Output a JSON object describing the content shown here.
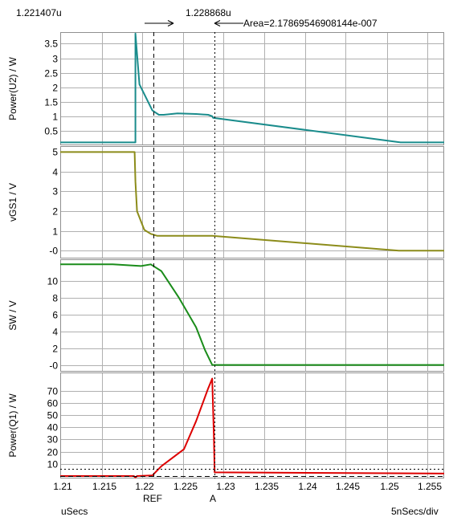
{
  "header": {
    "ref_time": "1.221407u",
    "a_time": "1.228868u",
    "area_label": "Area=2.17869546908144e-007"
  },
  "footer": {
    "x_unit": "uSecs",
    "x_div": "5nSecs/div",
    "ref_label": "REF",
    "a_label": "A"
  },
  "colors": {
    "power_u2": "#1a8c8c",
    "vgs1": "#8c8c1a",
    "sw": "#1a8c1a",
    "power_q1": "#dd0000",
    "grid": "#b0b0b0",
    "frame": "#909090"
  },
  "chart_data": [
    {
      "type": "line",
      "ylabel": "Power(U2) / W",
      "xlim": [
        1.21,
        1.2575
      ],
      "ylim": [
        0,
        3.9
      ],
      "yticks": [
        0.5,
        1,
        1.5,
        2,
        2.5,
        3,
        3.5
      ],
      "ytick_labels": [
        "0.5",
        "1",
        "1.5",
        "2",
        "2.5",
        "3",
        "3.5"
      ],
      "series": [
        {
          "x": [
            1.21,
            1.2193,
            1.2193,
            1.2198,
            1.2214,
            1.2222,
            1.2228,
            1.2245,
            1.2268,
            1.2283,
            1.2288,
            1.2289,
            1.2521,
            1.2575
          ],
          "y": [
            0.1,
            0.1,
            3.85,
            2.1,
            1.2,
            1.05,
            1.05,
            1.1,
            1.08,
            1.05,
            1.0,
            0.95,
            0.1,
            0.1
          ]
        }
      ]
    },
    {
      "type": "line",
      "ylabel": "vGS1 / V",
      "xlim": [
        1.21,
        1.2575
      ],
      "ylim": [
        -0.4,
        5.3
      ],
      "yticks": [
        0,
        1,
        2,
        3,
        4,
        5
      ],
      "ytick_labels": [
        "-0",
        "1",
        "2",
        "3",
        "4",
        "5"
      ],
      "series": [
        {
          "x": [
            1.21,
            1.2192,
            1.2193,
            1.2195,
            1.2204,
            1.2212,
            1.222,
            1.2288,
            1.2519,
            1.2575
          ],
          "y": [
            5.0,
            5.0,
            3.5,
            2.0,
            1.05,
            0.85,
            0.75,
            0.75,
            0.0,
            0.0
          ]
        }
      ]
    },
    {
      "type": "line",
      "ylabel": "SW / V",
      "xlim": [
        1.21,
        1.2575
      ],
      "ylim": [
        -0.8,
        12.6
      ],
      "yticks": [
        0,
        2,
        4,
        6,
        8,
        10
      ],
      "ytick_labels": [
        "-0",
        "2",
        "4",
        "6",
        "8",
        "10"
      ],
      "series": [
        {
          "x": [
            1.21,
            1.2165,
            1.22,
            1.2212,
            1.2225,
            1.2247,
            1.2268,
            1.2279,
            1.2288,
            1.2575
          ],
          "y": [
            12.0,
            12.0,
            11.8,
            12.0,
            11.2,
            8.0,
            4.5,
            1.8,
            0.0,
            0.0
          ]
        }
      ]
    },
    {
      "type": "line",
      "ylabel": "Power(Q1) / W",
      "xlim": [
        1.21,
        1.2575
      ],
      "ylim": [
        -2,
        85
      ],
      "yticks": [
        10,
        20,
        30,
        40,
        50,
        60,
        70
      ],
      "ytick_labels": [
        "10",
        "20",
        "30",
        "40",
        "50",
        "60",
        "70"
      ],
      "xticks": [
        1.21,
        1.215,
        1.22,
        1.225,
        1.23,
        1.235,
        1.24,
        1.245,
        1.25,
        1.255
      ],
      "xtick_labels": [
        "1.21",
        "1.215",
        "1.22",
        "1.225",
        "1.23",
        "1.235",
        "1.24",
        "1.245",
        "1.25",
        "1.255"
      ],
      "series": [
        {
          "x": [
            1.21,
            1.2191,
            1.2193,
            1.2195,
            1.2214,
            1.2225,
            1.2253,
            1.2268,
            1.2283,
            1.2288,
            1.229,
            1.2291,
            1.2575
          ],
          "y": [
            0,
            0,
            -1.2,
            0,
            0.5,
            8,
            22,
            45,
            72,
            80,
            35,
            3,
            2
          ]
        }
      ]
    }
  ]
}
